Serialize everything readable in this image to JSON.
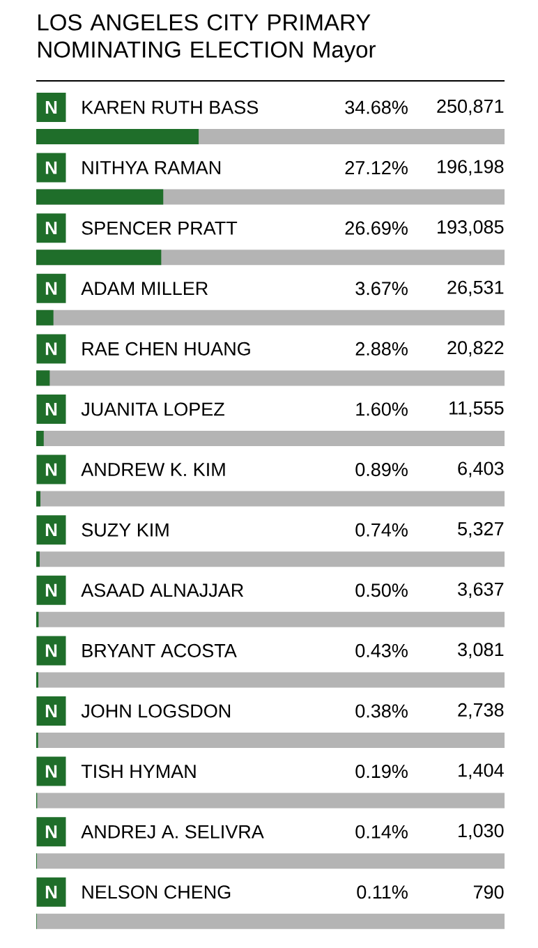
{
  "chart_data": {
    "type": "bar",
    "orientation": "horizontal",
    "title": "LOS ANGELES CITY PRIMARY NOMINATING ELECTION Mayor",
    "categories": [
      "KAREN RUTH BASS",
      "NITHYA RAMAN",
      "SPENCER PRATT",
      "ADAM MILLER",
      "RAE CHEN HUANG",
      "JUANITA LOPEZ",
      "ANDREW K. KIM",
      "SUZY KIM",
      "ASAAD ALNAJJAR",
      "BRYANT ACOSTA",
      "JOHN LOGSDON",
      "TISH HYMAN",
      "ANDREJ A. SELIVRA",
      "NELSON CHENG"
    ],
    "values": [
      34.68,
      27.12,
      26.69,
      3.67,
      2.88,
      1.6,
      0.89,
      0.74,
      0.5,
      0.43,
      0.38,
      0.19,
      0.14,
      0.11
    ],
    "value_labels": [
      "34.68%",
      "27.12%",
      "26.69%",
      "3.67%",
      "2.88%",
      "1.60%",
      "0.89%",
      "0.74%",
      "0.50%",
      "0.43%",
      "0.38%",
      "0.19%",
      "0.14%",
      "0.11%"
    ],
    "color": "#1f6e2a",
    "xlim": [
      0,
      100
    ],
    "annotations": [
      "N",
      "250,871",
      "N",
      "196,198",
      "N",
      "193,085",
      "N",
      "26,531",
      "N",
      "20,822",
      "N",
      "11,555",
      "N",
      "6,403",
      "N",
      "5,327",
      "N",
      "3,637",
      "N",
      "3,081",
      "N",
      "2,738",
      "N",
      "1,404",
      "N",
      "1,030",
      "N",
      "790"
    ]
  }
}
